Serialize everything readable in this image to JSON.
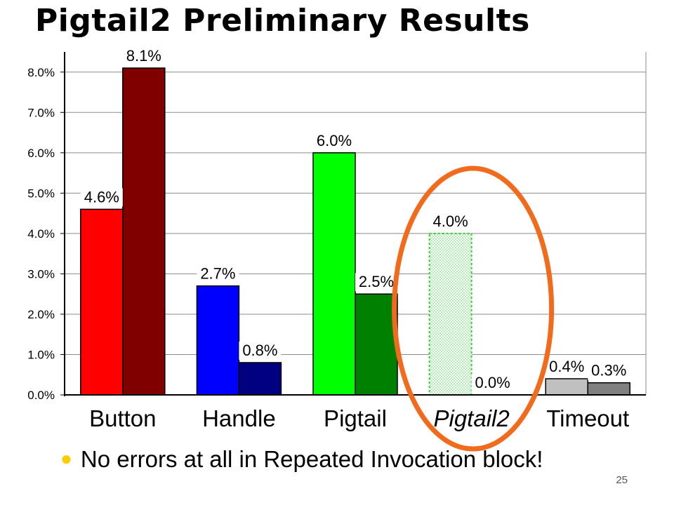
{
  "slide": {
    "title": "Pigtail2 Preliminary Results",
    "bullet": "No errors at all in Repeated Invocation block!",
    "page_number": "25"
  },
  "chart_data": {
    "type": "bar",
    "categories": [
      "Button",
      "Handle",
      "Pigtail",
      "Pigtail2",
      "Timeout"
    ],
    "series": [
      {
        "values": [
          4.6,
          2.7,
          6.0,
          4.0,
          0.4
        ],
        "labels": [
          "4.6%",
          "2.7%",
          "6.0%",
          "4.0%",
          "0.4%"
        ],
        "colors": [
          "#ff0000",
          "#0000ff",
          "#00ff00",
          "#ccffcc",
          "#c0c0c0"
        ]
      },
      {
        "values": [
          8.1,
          0.8,
          2.5,
          0.0,
          0.3
        ],
        "labels": [
          "8.1%",
          "0.8%",
          "2.5%",
          "0.0%",
          "0.3%"
        ],
        "colors": [
          "#800000",
          "#000080",
          "#008000",
          "#ffffff",
          "#808080"
        ]
      }
    ],
    "italic_category": "Pigtail2",
    "dashed_category": "Pigtail2",
    "highlight_category": "Pigtail2",
    "highlight_color": "#f26a1b",
    "y_ticks": [
      "0.0%",
      "1.0%",
      "2.0%",
      "3.0%",
      "4.0%",
      "5.0%",
      "6.0%",
      "7.0%",
      "8.0%"
    ],
    "ylim": [
      0,
      8.5
    ],
    "grid": true,
    "legend": "none"
  }
}
